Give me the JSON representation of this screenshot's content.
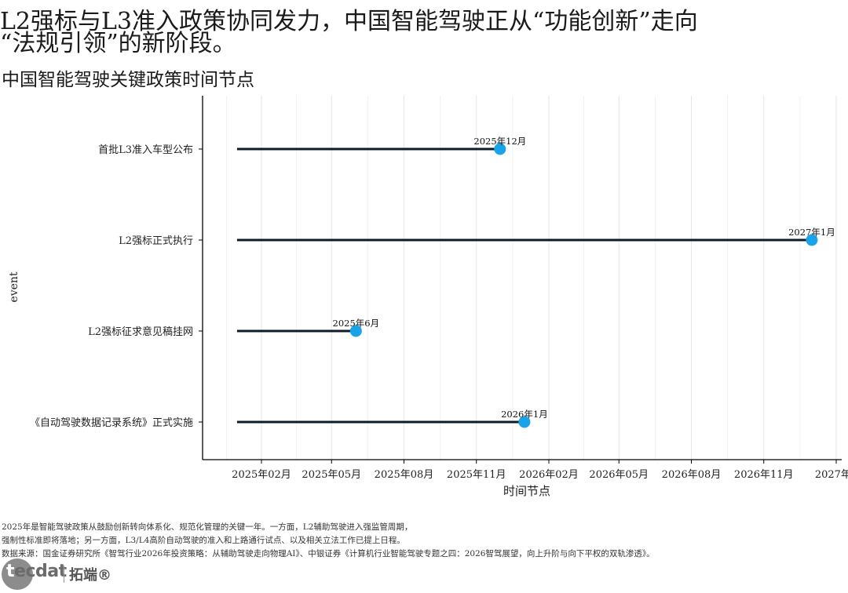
{
  "title": "L2强标与L3准入政策协同发力，中国智能驾驶正从“功能创新”走向\n“法规引领”的新阶段。",
  "subtitle": "中国智能驾驶关键政策时间节点",
  "colors": {
    "dot": "#1aa3e8",
    "line": "#0d1b2a",
    "grid": "#e6e6e6",
    "axis": "#000000"
  },
  "chart_data": {
    "type": "lollipop",
    "xlabel": "时间节点",
    "ylabel": "event",
    "x_ticks": [
      "2025年02月",
      "2025年05月",
      "2025年08月",
      "2025年11月",
      "2026年02月",
      "2026年05月",
      "2026年08月",
      "2026年11月",
      "2027年0"
    ],
    "x_tick_dates": [
      "2025-02-01",
      "2025-05-01",
      "2025-08-01",
      "2025-11-01",
      "2026-02-01",
      "2026-05-01",
      "2026-08-01",
      "2026-11-01",
      "2027-02-01"
    ],
    "xlim": [
      "2024-12-15",
      "2027-02-01"
    ],
    "line_start": "2025-01-01",
    "grid": true,
    "legend": "none",
    "events": [
      {
        "label": "首批L3准入车型公布",
        "date": "2025-12-01",
        "date_label": "2025年12月"
      },
      {
        "label": "L2强标正式执行",
        "date": "2027-01-01",
        "date_label": "2027年1月"
      },
      {
        "label": "L2强标征求意见稿挂网",
        "date": "2025-06-01",
        "date_label": "2025年6月"
      },
      {
        "label": "《自动驾驶数据记录系统》正式实施",
        "date": "2026-01-01",
        "date_label": "2026年1月"
      }
    ]
  },
  "footer": {
    "line1": "2025年是智能驾驶政策从鼓励创新转向体系化、规范化管理的关键一年。一方面，L2辅助驾驶进入强监管周期，",
    "line2": "强制性标准即将落地；另一方面，L3/L4高阶自动驾驶的准入和上路通行试点、以及相关立法工作已提上日程。",
    "line3": "数据来源：国金证券研究所《智驾行业2026年投资策略：从辅助驾驶走向物理AI》、中银证券《计算机行业智能驾驶专题之四：2026智驾展望，向上升阶与向下平权的双轨渗透》。"
  },
  "logo": {
    "text_first": "t",
    "text_rest": "ecdat",
    "cn": "拓端®"
  }
}
